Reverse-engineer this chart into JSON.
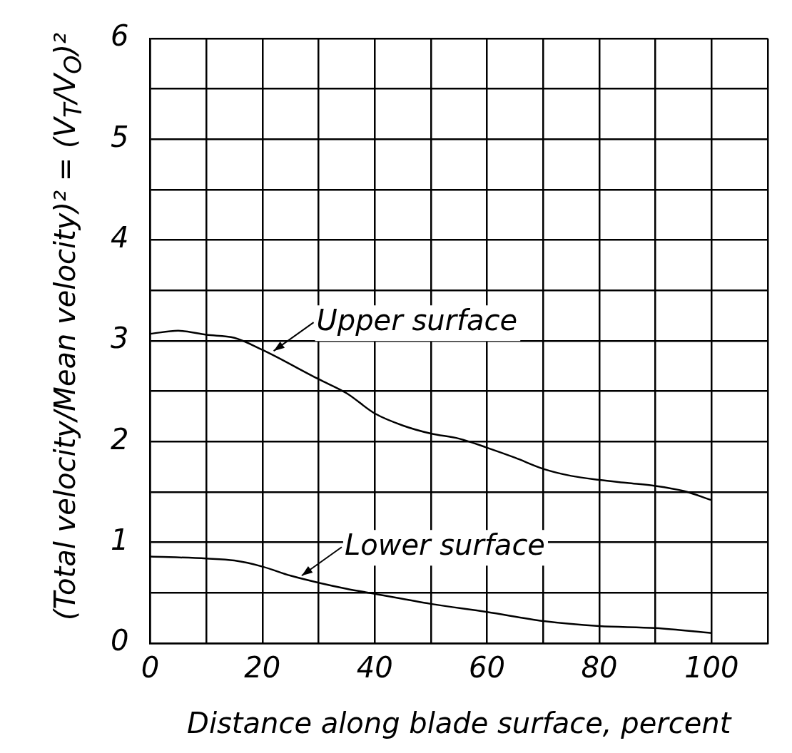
{
  "chart_data": {
    "type": "line",
    "xlabel": "Distance along blade surface, percent",
    "ylabel": "(Total velocity/Mean velocity)² = (V$_{T}$/V$_{O}$)²",
    "series": [
      {
        "color": "#000000",
        "x": [
          0,
          5,
          10,
          15,
          20,
          30,
          35,
          40,
          45,
          50,
          55,
          60,
          65,
          70,
          75,
          80,
          85,
          90,
          95,
          100
        ],
        "values": [
          3.07,
          3.1,
          3.06,
          3.03,
          2.91,
          2.62,
          2.48,
          2.28,
          2.16,
          2.08,
          2.03,
          1.94,
          1.84,
          1.73,
          1.66,
          1.62,
          1.59,
          1.56,
          1.51,
          1.42
        ]
      },
      {
        "color": "#000000",
        "x": [
          0,
          10,
          15,
          20,
          25,
          30,
          35,
          40,
          50,
          60,
          70,
          80,
          90,
          100
        ],
        "values": [
          0.86,
          0.84,
          0.82,
          0.76,
          0.67,
          0.6,
          0.54,
          0.49,
          0.39,
          0.31,
          0.22,
          0.17,
          0.15,
          0.1
        ]
      }
    ],
    "annotations": [
      {
        "text": "Upper surface",
        "x": 22,
        "y": 2.9
      },
      {
        "text": "Lower surface",
        "x": 27,
        "y": 0.67
      }
    ],
    "xlim": [
      0,
      110
    ],
    "xticks": [
      0,
      {
        "value": 10,
        "label": null
      },
      20,
      {
        "value": 30,
        "label": null
      },
      40,
      {
        "value": 50,
        "label": null
      },
      60,
      {
        "value": 70,
        "label": null
      },
      80,
      {
        "value": 90,
        "label": null
      },
      100,
      {
        "value": 110,
        "label": null
      }
    ],
    "ylim": [
      0,
      6
    ],
    "yticks": [
      0,
      {
        "value": 0.5,
        "label": null
      },
      1,
      {
        "value": 1.5,
        "label": null
      },
      2,
      {
        "value": 2.5,
        "label": null
      },
      3,
      {
        "value": 3.5,
        "label": null
      },
      4,
      {
        "value": 4.5,
        "label": null
      },
      5,
      {
        "value": 5.5,
        "label": null
      },
      6
    ],
    "grid": true,
    "legend": false,
    "marker": "none",
    "line_style": "solid"
  }
}
